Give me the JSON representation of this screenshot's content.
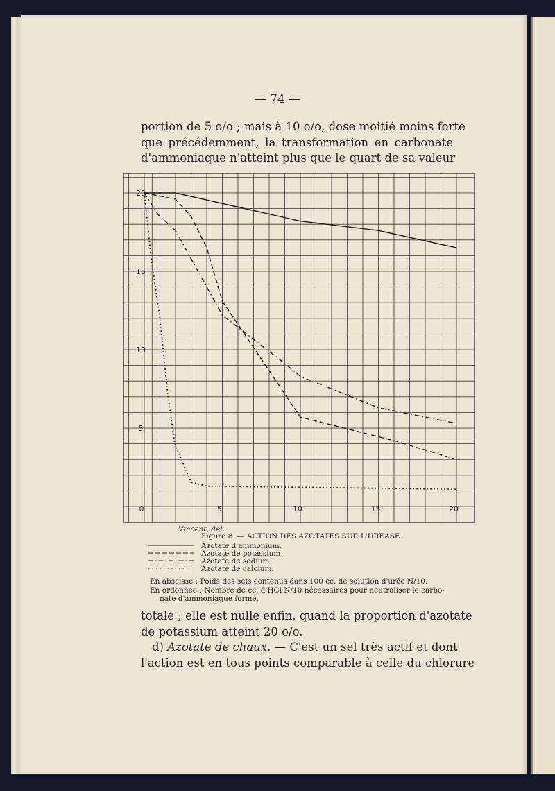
{
  "page_number": "— 74 —",
  "top_text": [
    "portion de 5 o/o ; mais à 10 o/o, dose moitié moins forte",
    "que précédemment, la transformation en carbonate",
    "d'ammoniaque n'atteint plus que le quart de sa valeur"
  ],
  "figure": {
    "credit": "Vincent, del.",
    "title": "Figure 8. — ACTION DES AZOTATES SUR L'URÉASE.",
    "legend": [
      {
        "label": "Azotate d'ammonium.",
        "style": "solid"
      },
      {
        "label": "Azotate de potassium.",
        "style": "dashed"
      },
      {
        "label": "Azotate de sodium.",
        "style": "dash-dot"
      },
      {
        "label": "Azotate de calcium.",
        "style": "dotted"
      }
    ],
    "abscisse": "En abscisse : Poids des sels contenus dans 100 cc. de solution d'urée N/10.",
    "ordonnee_1": "En ordonnée : Nombre de cc. d'HCl N/10 nécessaires pour neutraliser le carbo-",
    "ordonnee_2": "nate d'ammoniaque formé."
  },
  "chart_data": {
    "type": "line",
    "title": "ACTION DES AZOTATES SUR L'URÉASE",
    "xlabel": "Poids des sels contenus dans 100 cc. de solution d'urée N/10",
    "ylabel": "Nombre de cc. d'HCl N/10 nécessaires pour neutraliser le carbonate d'ammoniaque formé",
    "xlim": [
      -1,
      21
    ],
    "ylim": [
      -1,
      21
    ],
    "x_ticks": [
      "0",
      "5",
      "10",
      "15",
      "20"
    ],
    "y_ticks": [
      "20",
      "15",
      "10",
      "5"
    ],
    "grid": true,
    "series": [
      {
        "name": "Azotate d'ammonium",
        "style": "solid",
        "points": [
          [
            0,
            20
          ],
          [
            2,
            20
          ],
          [
            10,
            18.2
          ],
          [
            15,
            17.6
          ],
          [
            20,
            16.5
          ]
        ]
      },
      {
        "name": "Azotate de potassium",
        "style": "dashed",
        "points": [
          [
            0,
            20
          ],
          [
            2,
            19.6
          ],
          [
            3,
            18.5
          ],
          [
            4,
            16.5
          ],
          [
            5,
            13.1
          ],
          [
            10,
            5.7
          ],
          [
            16,
            4.2
          ],
          [
            20,
            3.0
          ]
        ]
      },
      {
        "name": "Azotate de sodium",
        "style": "dash-dot",
        "points": [
          [
            0,
            20
          ],
          [
            0.9,
            18.6
          ],
          [
            2,
            17.6
          ],
          [
            4,
            14.0
          ],
          [
            5,
            12.2
          ],
          [
            8.9,
            9.2
          ],
          [
            10,
            8.3
          ],
          [
            15,
            6.3
          ],
          [
            20,
            5.3
          ]
        ]
      },
      {
        "name": "Azotate de calcium",
        "style": "dotted",
        "points": [
          [
            0,
            20
          ],
          [
            0.45,
            15.8
          ],
          [
            1,
            12
          ],
          [
            1.5,
            7.2
          ],
          [
            1.95,
            4.0
          ],
          [
            3,
            1.55
          ],
          [
            4,
            1.3
          ],
          [
            20,
            1.1
          ]
        ]
      }
    ]
  },
  "bottom_text": [
    "totale ; elle est nulle enfin, quand la proportion d'azotate",
    "de potassium atteint 20 o/o.",
    "d) Azotate de chaux. — C'est un sel très actif et dont",
    "l'action est en tous points comparable à celle du chlorure"
  ],
  "bottom_italic": "Azotate de chaux.",
  "bottom_line3_prefix": "d) ",
  "bottom_line3_rest": " — C'est un sel très actif et dont"
}
